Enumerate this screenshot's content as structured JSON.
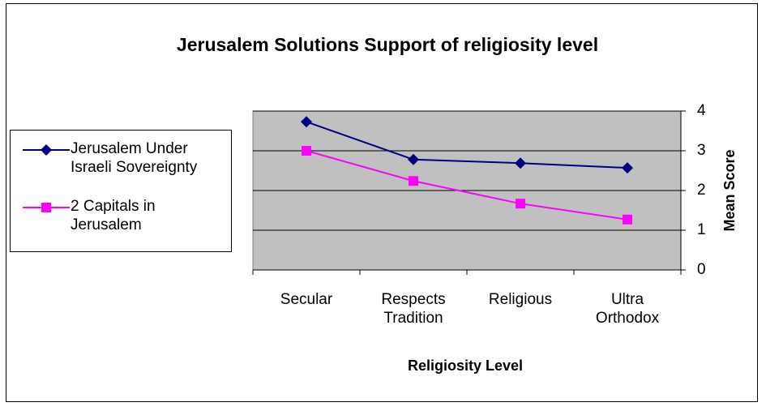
{
  "chart_data": {
    "type": "line",
    "title": "Jerusalem Solutions Support of religiosity level",
    "x_label": "Religiosity Level",
    "y_label": "Mean Score",
    "categories": [
      "Secular",
      "Respects Tradition",
      "Religious",
      "Ultra Orthodox"
    ],
    "series": [
      {
        "name": "Jerusalem Under Israeli Sovereignty",
        "color": "#000080",
        "marker": "diamond",
        "values": [
          3.73,
          2.78,
          2.69,
          2.57
        ]
      },
      {
        "name": "2 Capitals in Jerusalem",
        "color": "#ff00ff",
        "marker": "square",
        "values": [
          3.0,
          2.24,
          1.67,
          1.27
        ]
      }
    ],
    "ylim": [
      0,
      4
    ],
    "yticks": [
      0,
      1,
      2,
      3,
      4
    ],
    "grid": true,
    "y_axis_side": "right",
    "plot_background": "#c0c0c0",
    "legend": "left"
  }
}
